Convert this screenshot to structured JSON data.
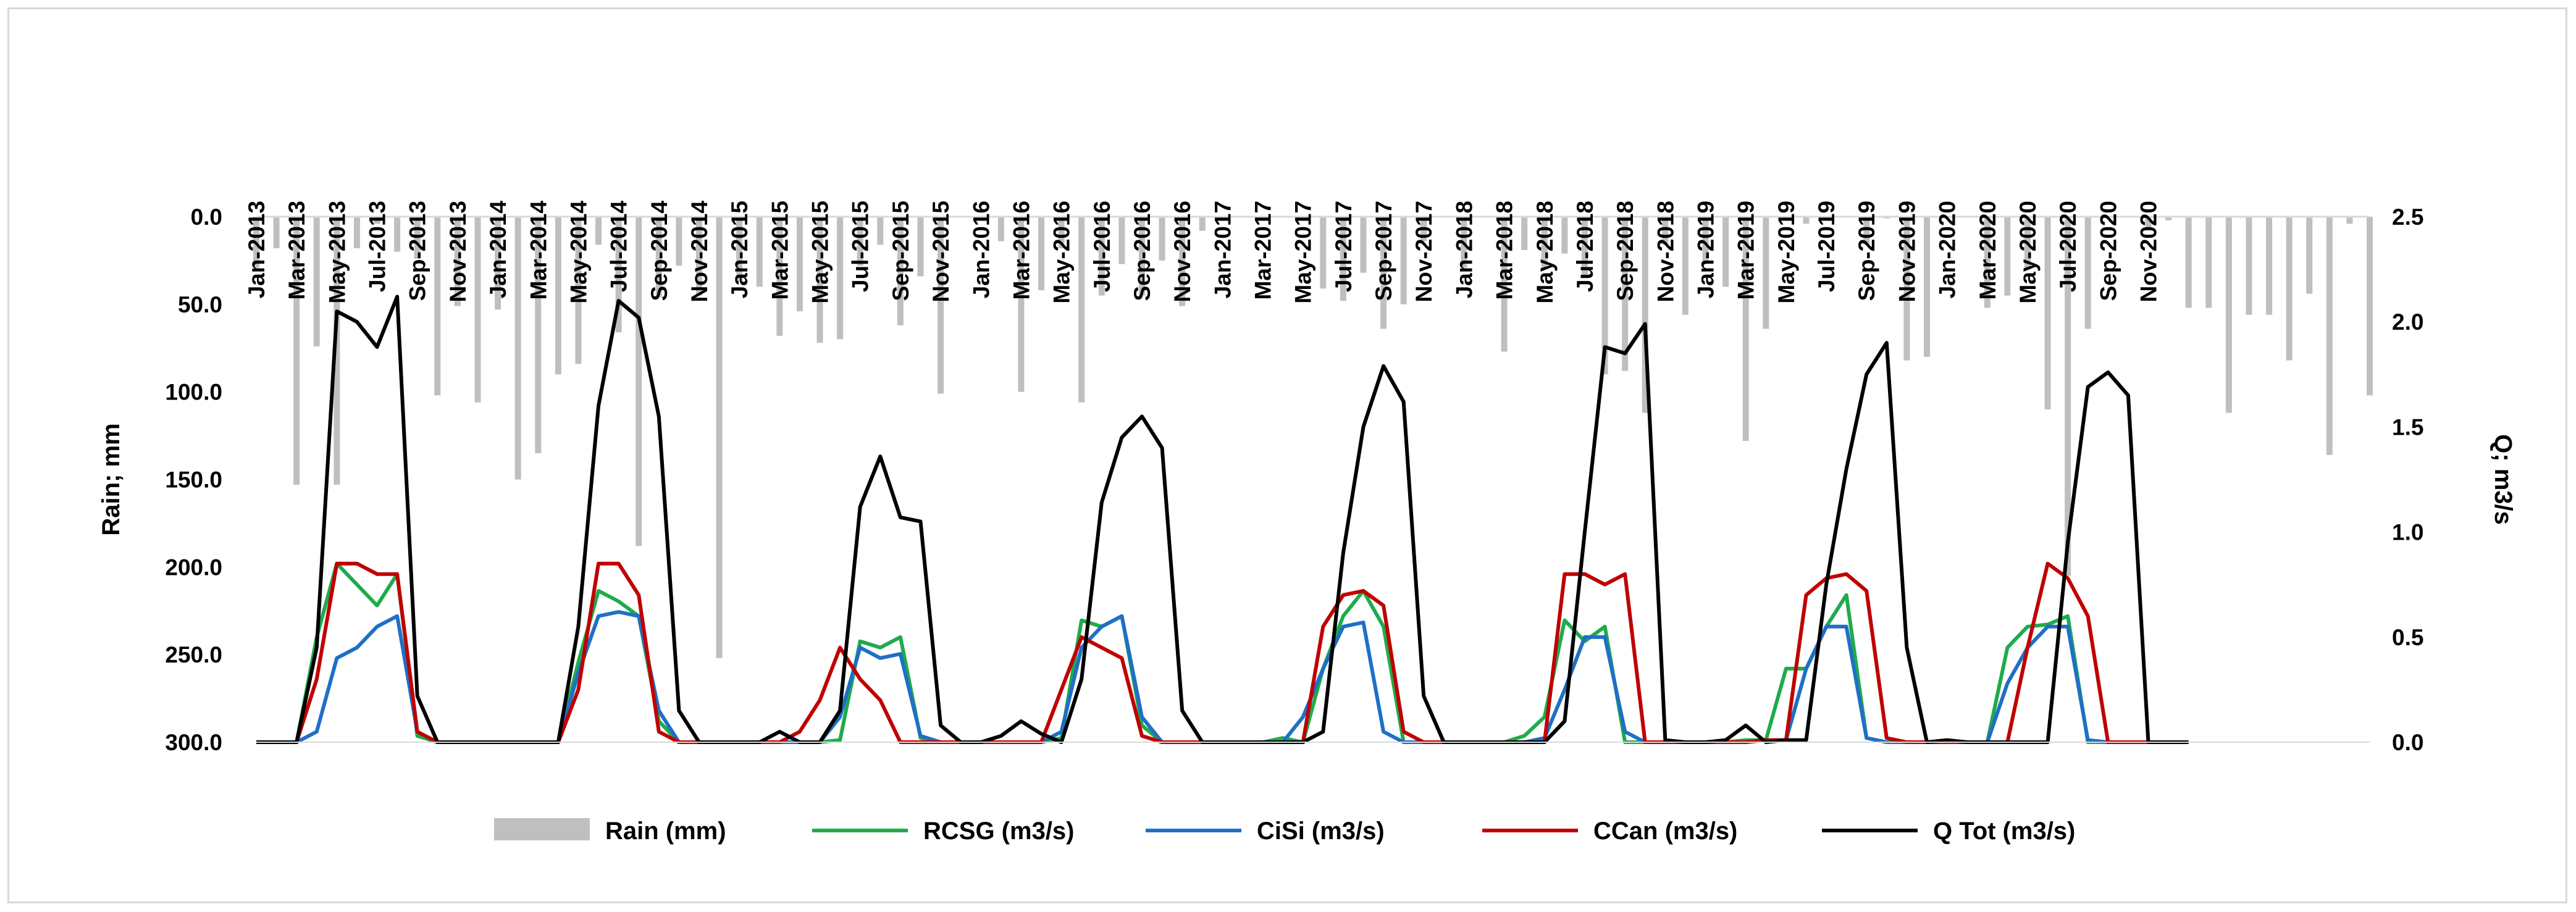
{
  "chart_data": {
    "type": "bar+line",
    "left_axis": {
      "label": "Rain; mm",
      "range": [
        0,
        300
      ],
      "reversed": true,
      "ticks": [
        "0.0",
        "50.0",
        "100.0",
        "150.0",
        "200.0",
        "250.0",
        "300.0"
      ]
    },
    "right_axis": {
      "label": "Q; m3/s",
      "range": [
        0,
        2.5
      ],
      "ticks": [
        "0.0",
        "0.5",
        "1.0",
        "1.5",
        "2.0",
        "2.5"
      ]
    },
    "x_tick_labels": [
      "Jan-2013",
      "Mar-2013",
      "May-2013",
      "Jul-2013",
      "Sep-2013",
      "Nov-2013",
      "Jan-2014",
      "Mar-2014",
      "May-2014",
      "Jul-2014",
      "Sep-2014",
      "Nov-2014",
      "Jan-2015",
      "Mar-2015",
      "May-2015",
      "Jul-2015",
      "Sep-2015",
      "Nov-2015",
      "Jan-2016",
      "Mar-2016",
      "May-2016",
      "Jul-2016",
      "Sep-2016",
      "Nov-2016",
      "Jan-2017",
      "Mar-2017",
      "May-2017",
      "Jul-2017",
      "Sep-2017",
      "Nov-2017",
      "Jan-2018",
      "Mar-2018",
      "May-2018",
      "Jul-2018",
      "Sep-2018",
      "Nov-2018",
      "Jan-2019",
      "Mar-2019",
      "May-2019",
      "Jul-2019",
      "Sep-2019",
      "Nov-2019",
      "Jan-2020",
      "Mar-2020",
      "May-2020",
      "Jul-2020",
      "Sep-2020",
      "Nov-2020"
    ],
    "grid": false,
    "legend_position": "bottom",
    "series": [
      {
        "name": "Rain (mm)",
        "type": "bar",
        "axis": "left",
        "color": "#bfbfbf",
        "values": [
          29,
          18,
          153,
          74,
          153,
          18,
          4,
          20,
          24,
          102,
          51,
          106,
          53,
          150,
          135,
          90,
          84,
          16,
          66,
          188,
          46,
          28,
          45,
          252,
          37,
          40,
          68,
          54,
          72,
          70,
          28,
          16,
          62,
          34,
          101,
          0,
          0,
          14,
          100,
          42,
          18,
          106,
          45,
          27,
          45,
          25,
          51,
          8,
          0,
          0,
          0,
          0,
          0,
          41,
          48,
          32,
          64,
          50,
          14,
          0,
          29,
          0,
          77,
          19,
          30,
          21,
          35,
          90,
          88,
          112,
          16,
          56,
          27,
          40,
          128,
          64,
          0,
          4,
          0,
          0,
          16,
          1,
          82,
          80,
          0,
          0,
          52,
          45,
          30,
          110,
          205,
          64,
          0,
          0,
          6,
          2,
          52,
          52,
          112,
          56,
          56,
          82,
          44,
          136,
          4,
          102
        ]
      },
      {
        "name": "RCSG (m3/s)",
        "type": "line",
        "axis": "right",
        "color": "#1fab4c",
        "values": [
          0,
          0,
          0,
          0.5,
          0.85,
          0.75,
          0.65,
          0.8,
          0.03,
          0,
          0,
          0,
          0,
          0,
          0,
          0,
          0.38,
          0.72,
          0.67,
          0.6,
          0.1,
          0,
          0,
          0,
          0,
          0,
          0,
          0,
          0,
          0.01,
          0.48,
          0.45,
          0.5,
          0.02,
          0,
          0,
          0,
          0,
          0,
          0,
          0.02,
          0.58,
          0.55,
          0.6,
          0.08,
          0,
          0,
          0,
          0,
          0,
          0,
          0.02,
          0,
          0.35,
          0.6,
          0.72,
          0.55,
          0,
          0,
          0,
          0,
          0,
          0,
          0.03,
          0.12,
          0.58,
          0.48,
          0.55,
          0,
          0,
          0,
          0,
          0,
          0,
          0.01,
          0.01,
          0.35,
          0.35,
          0.55,
          0.7,
          0.02,
          0,
          0,
          0,
          0,
          0,
          0,
          0.45,
          0.55,
          0.56,
          0.6,
          0,
          0,
          0
        ]
      },
      {
        "name": "CiSi (m3/s)",
        "type": "line",
        "axis": "right",
        "color": "#1f6fc6",
        "values": [
          0,
          0,
          0,
          0.05,
          0.4,
          0.45,
          0.55,
          0.6,
          0.05,
          0,
          0,
          0,
          0,
          0,
          0,
          0,
          0.33,
          0.6,
          0.62,
          0.6,
          0.15,
          0,
          0,
          0,
          0,
          0,
          0,
          0,
          0,
          0.12,
          0.45,
          0.4,
          0.42,
          0.03,
          0,
          0,
          0,
          0,
          0,
          0,
          0.05,
          0.45,
          0.55,
          0.6,
          0.12,
          0,
          0,
          0,
          0,
          0,
          0,
          0,
          0.12,
          0.35,
          0.55,
          0.57,
          0.05,
          0,
          0,
          0,
          0,
          0,
          0,
          0,
          0.02,
          0.25,
          0.5,
          0.5,
          0.05,
          0,
          0,
          0,
          0,
          0,
          0,
          0.01,
          0.01,
          0.35,
          0.55,
          0.55,
          0.02,
          0,
          0,
          0,
          0,
          0,
          0,
          0.28,
          0.45,
          0.55,
          0.55,
          0.01,
          0,
          0
        ]
      },
      {
        "name": "CCan (m3/s)",
        "type": "line",
        "axis": "right",
        "color": "#c00000",
        "values": [
          0,
          0,
          0,
          0.3,
          0.85,
          0.85,
          0.8,
          0.8,
          0.05,
          0,
          0,
          0,
          0,
          0,
          0,
          0,
          0.25,
          0.85,
          0.85,
          0.7,
          0.05,
          0,
          0,
          0,
          0,
          0,
          0,
          0.05,
          0.2,
          0.45,
          0.3,
          0.2,
          0,
          0,
          0,
          0,
          0,
          0,
          0,
          0,
          0.25,
          0.5,
          0.45,
          0.4,
          0.03,
          0,
          0,
          0,
          0,
          0,
          0,
          0,
          0,
          0.55,
          0.7,
          0.72,
          0.65,
          0.05,
          0,
          0,
          0,
          0,
          0,
          0,
          0,
          0.8,
          0.8,
          0.75,
          0.8,
          0,
          0,
          0,
          0,
          0,
          0,
          0.01,
          0.01,
          0.7,
          0.78,
          0.8,
          0.72,
          0.02,
          0,
          0,
          0,
          0,
          0,
          0,
          0.45,
          0.85,
          0.78,
          0.6,
          0,
          0,
          0
        ]
      },
      {
        "name": "Q Tot (m3/s)",
        "type": "line",
        "axis": "right",
        "color": "#000000",
        "values": [
          0,
          0,
          0,
          0.45,
          2.05,
          2.0,
          1.88,
          2.12,
          0.22,
          0,
          0,
          0,
          0,
          0,
          0,
          0,
          0.55,
          1.6,
          2.1,
          2.02,
          1.55,
          0.15,
          0,
          0,
          0,
          0,
          0.05,
          0,
          0,
          0.15,
          1.12,
          1.36,
          1.07,
          1.05,
          0.08,
          0,
          0,
          0.03,
          0.1,
          0.04,
          0,
          0.3,
          1.14,
          1.45,
          1.55,
          1.4,
          0.15,
          0,
          0,
          0,
          0,
          0,
          0,
          0.05,
          0.9,
          1.5,
          1.79,
          1.62,
          0.22,
          0,
          0,
          0,
          0,
          0,
          0,
          0.1,
          1.0,
          1.88,
          1.85,
          1.99,
          0.01,
          0,
          0,
          0.01,
          0.08,
          0,
          0.01,
          0.01,
          0.75,
          1.3,
          1.75,
          1.9,
          0.45,
          0,
          0.01,
          0,
          0,
          0,
          0,
          0,
          0.95,
          1.69,
          1.76,
          1.65,
          0,
          0,
          0
        ]
      }
    ]
  }
}
